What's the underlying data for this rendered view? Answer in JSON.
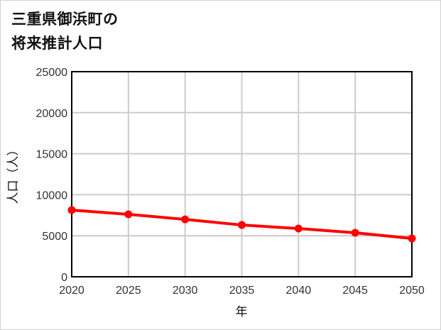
{
  "title": {
    "line1": "三重県御浜町の",
    "line2": "将来推計人口"
  },
  "chart_data": {
    "type": "line",
    "title": "三重県御浜町の将来推計人口",
    "xlabel": "年",
    "ylabel": "人口（人）",
    "x": [
      2020,
      2025,
      2030,
      2035,
      2040,
      2045,
      2050
    ],
    "series": [
      {
        "name": "人口",
        "color": "#ff0000",
        "values": [
          8130,
          7610,
          7000,
          6310,
          5880,
          5360,
          4670
        ]
      }
    ],
    "xlim": [
      2020,
      2050
    ],
    "ylim": [
      0,
      25000
    ],
    "yticks": [
      0,
      5000,
      10000,
      15000,
      20000,
      25000
    ],
    "xticks": [
      2020,
      2025,
      2030,
      2035,
      2040,
      2045,
      2050
    ],
    "grid": true,
    "legend": null
  },
  "axes": {
    "x_label": "年",
    "y_label": "人口（人）",
    "y_tick_labels": [
      "25000",
      "20000",
      "15000",
      "10000",
      "5000",
      "0"
    ],
    "x_tick_labels": [
      "2020",
      "2025",
      "2030",
      "2035",
      "2040",
      "2045",
      "2050"
    ]
  },
  "colors": {
    "line": "#ff0000",
    "grid": "#cccccc",
    "frame": "#000000"
  }
}
